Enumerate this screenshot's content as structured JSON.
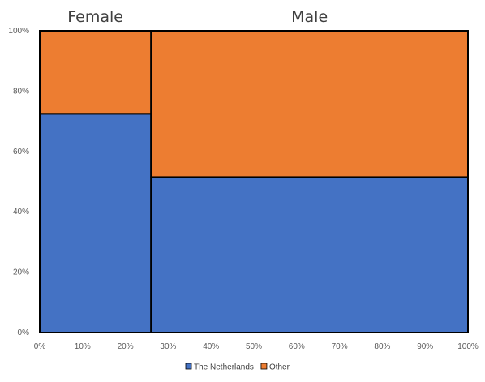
{
  "chart_data": {
    "type": "mosaic",
    "x_tick_labels": [
      "0%",
      "10%",
      "20%",
      "30%",
      "40%",
      "50%",
      "60%",
      "70%",
      "80%",
      "90%",
      "100%"
    ],
    "y_tick_labels": [
      "0%",
      "20%",
      "40%",
      "60%",
      "80%",
      "100%"
    ],
    "xlim": [
      0,
      100
    ],
    "ylim": [
      0,
      100
    ],
    "categories": [
      "Female",
      "Male"
    ],
    "widths": [
      26,
      74
    ],
    "series": [
      {
        "name": "The Netherlands",
        "color": "#4472C4",
        "values": [
          72.5,
          51.5
        ]
      },
      {
        "name": "Other",
        "color": "#ED7D31",
        "values": [
          27.5,
          48.5
        ]
      }
    ],
    "legend_position": "bottom",
    "grid": false
  }
}
